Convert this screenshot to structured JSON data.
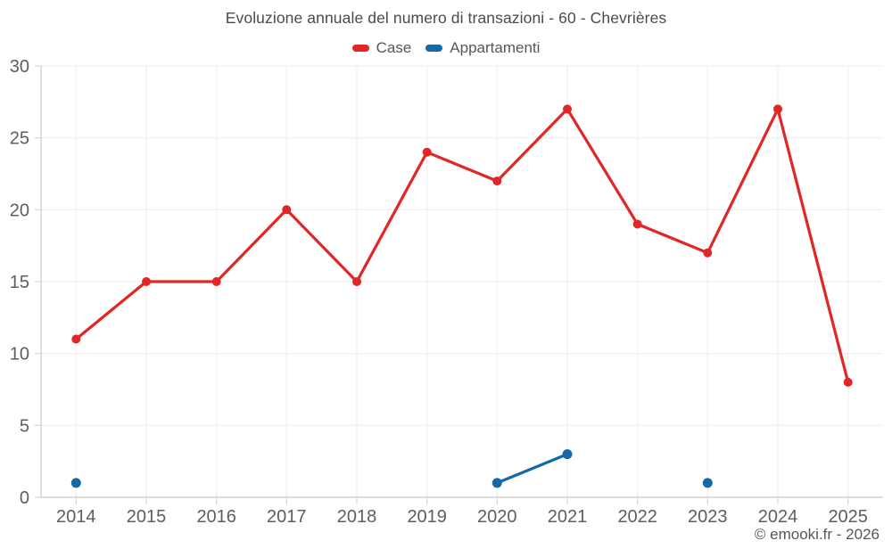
{
  "chart_data": {
    "type": "line",
    "title": "Evoluzione annuale del numero di transazioni - 60 - Chevrières",
    "categories": [
      "2014",
      "2015",
      "2016",
      "2017",
      "2018",
      "2019",
      "2020",
      "2021",
      "2022",
      "2023",
      "2024",
      "2025"
    ],
    "series": [
      {
        "name": "Case",
        "color": "#e12626",
        "point_radius": 5,
        "values": [
          11,
          15,
          15,
          20,
          15,
          24,
          22,
          27,
          19,
          17,
          27,
          8
        ]
      },
      {
        "name": "Appartamenti",
        "color": "#1569a6",
        "point_radius": 5.5,
        "values": [
          1,
          null,
          null,
          null,
          null,
          null,
          1,
          3,
          null,
          1,
          null,
          null
        ]
      }
    ],
    "xlabel": "",
    "ylabel": "",
    "ylim": [
      0,
      30
    ],
    "yticks": [
      0,
      5,
      10,
      15,
      20,
      25,
      30
    ],
    "grid": true,
    "legend_position": "top"
  },
  "footer": {
    "copyright": "© emooki.fr - 2026"
  },
  "style": {
    "grid_color": "#ebebeb",
    "axis_color": "#c8c8c8",
    "tick_color": "#d6d6d6",
    "label_color": "#5e5e5e",
    "title_color": "#4b4b4b",
    "background": "#ffffff"
  }
}
